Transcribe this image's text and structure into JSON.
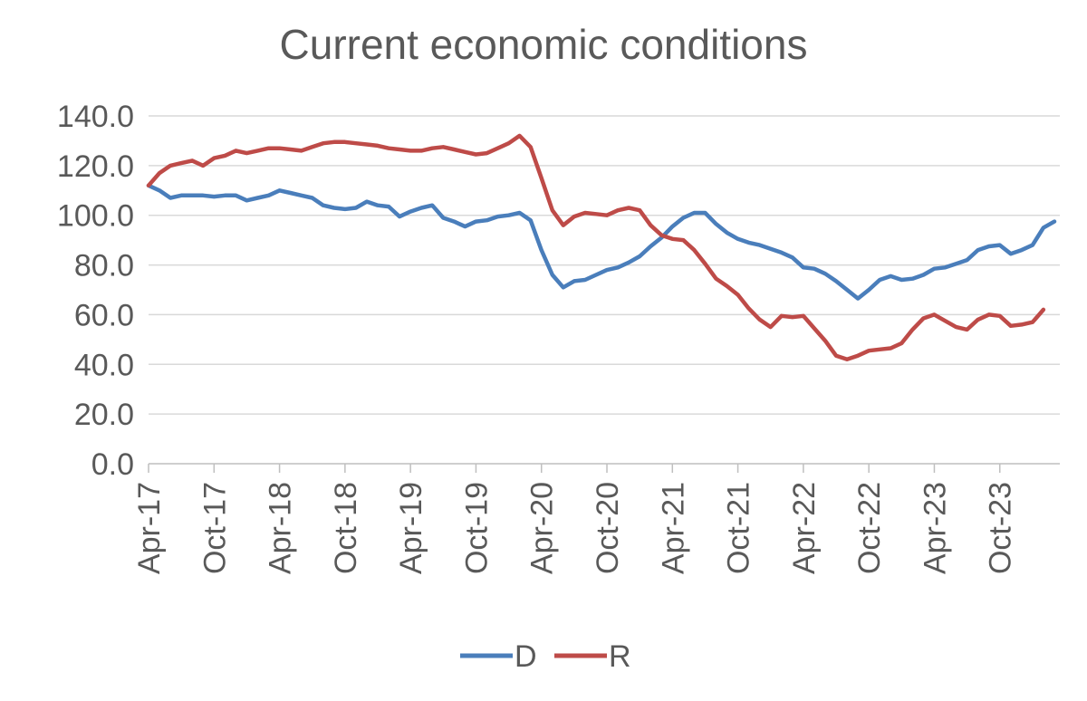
{
  "chart_data": {
    "type": "line",
    "title": "Current economic conditions",
    "xlabel": "",
    "ylabel": "",
    "ylim": [
      0,
      140
    ],
    "yticks": [
      0,
      20,
      40,
      60,
      80,
      100,
      120,
      140
    ],
    "ytick_labels": [
      "0.0",
      "20.0",
      "40.0",
      "60.0",
      "80.0",
      "100.0",
      "120.0",
      "140.0"
    ],
    "xtick_labels": [
      "Apr-17",
      "Oct-17",
      "Apr-18",
      "Oct-18",
      "Apr-19",
      "Oct-19",
      "Apr-20",
      "Oct-20",
      "Apr-21",
      "Oct-21",
      "Apr-22",
      "Oct-22",
      "Apr-23",
      "Oct-23"
    ],
    "x_start": "Apr-17",
    "x_step": "month",
    "grid": true,
    "legend_position": "bottom",
    "series": [
      {
        "name": "D",
        "color": "#4a7ebb",
        "values": [
          112,
          110,
          107,
          108,
          108,
          108,
          107.5,
          108,
          108,
          106,
          107,
          108,
          110,
          109,
          108,
          107,
          104,
          103,
          102.5,
          103,
          105.5,
          104,
          103.5,
          99.5,
          101.5,
          103,
          104,
          99,
          97.5,
          95.5,
          97.5,
          98,
          99.5,
          100,
          101,
          98,
          86,
          76,
          71,
          73.5,
          74,
          76,
          78,
          79,
          81,
          83.5,
          87.5,
          91,
          95.5,
          99,
          101,
          101,
          96.5,
          93,
          90.5,
          89,
          88,
          86.5,
          85,
          83,
          79,
          78.5,
          76.5,
          73.5,
          70,
          66.5,
          70,
          74,
          75.5,
          74,
          74.5,
          76,
          78.5,
          79,
          80.5,
          82,
          86,
          87.5,
          88,
          84.5,
          86,
          88,
          95,
          97.5
        ]
      },
      {
        "name": "R",
        "color": "#be4b48",
        "values": [
          112,
          117,
          120,
          121,
          122,
          120,
          123,
          124,
          126,
          125,
          126,
          127,
          127,
          126.5,
          126,
          127.5,
          129,
          129.5,
          129.5,
          129,
          128.5,
          128,
          127,
          126.5,
          126,
          126,
          127,
          127.5,
          126.5,
          125.5,
          124.5,
          125,
          127,
          129,
          132,
          127.5,
          115,
          102,
          96,
          99.5,
          101,
          100.5,
          100,
          102,
          103,
          102,
          96,
          92,
          90.5,
          90,
          86,
          80.5,
          74.5,
          71.5,
          68,
          62.5,
          58,
          55,
          59.5,
          59,
          59.5,
          54.5,
          49.5,
          43.5,
          42,
          43.5,
          45.5,
          46,
          46.5,
          48.5,
          54,
          58.5,
          60,
          57.5,
          55,
          54,
          58,
          60,
          59.5,
          55.5,
          56,
          57,
          62
        ]
      }
    ]
  }
}
